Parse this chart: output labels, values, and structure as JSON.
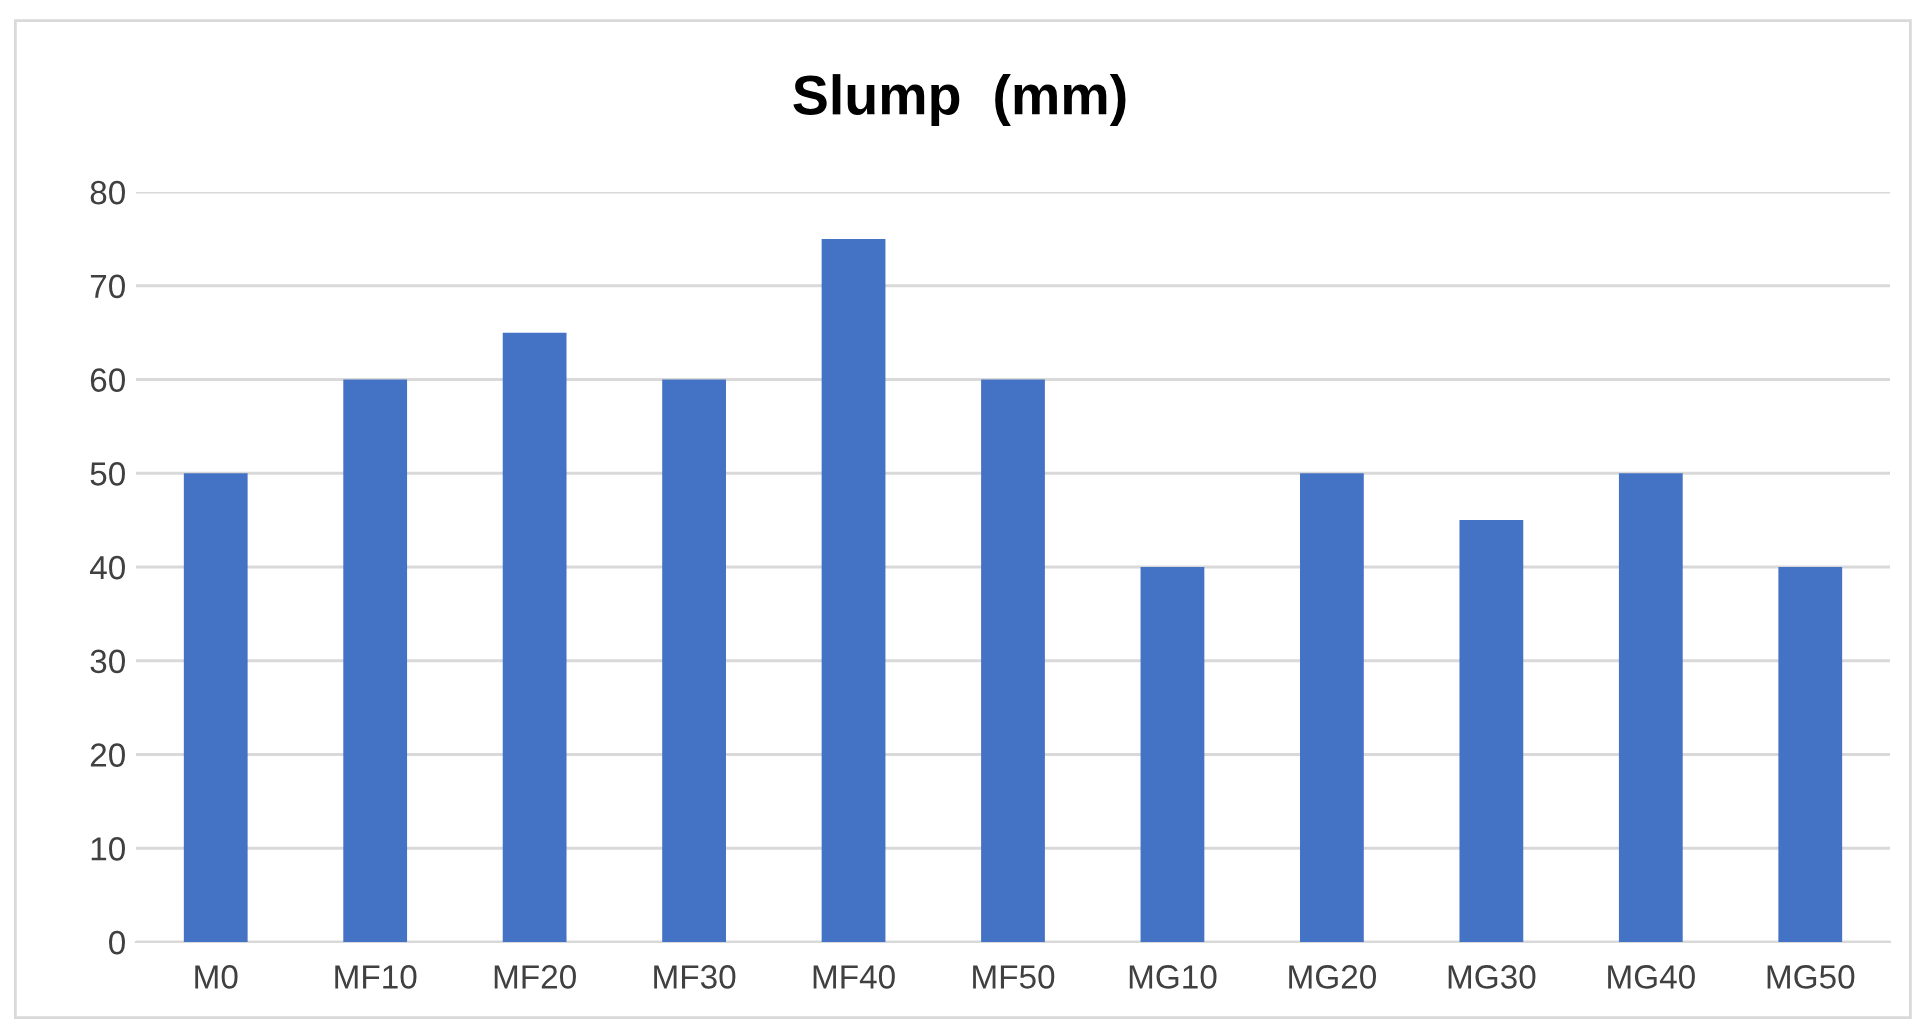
{
  "chart_data": {
    "type": "bar",
    "title": "Slump  (mm)",
    "categories": [
      "M0",
      "MF10",
      "MF20",
      "MF30",
      "MF40",
      "MF50",
      "MG10",
      "MG20",
      "MG30",
      "MG40",
      "MG50"
    ],
    "values": [
      50,
      60,
      65,
      60,
      75,
      60,
      40,
      50,
      45,
      50,
      40
    ],
    "color": "#4472c4",
    "ylim": [
      0,
      80
    ],
    "yticks": [
      0,
      10,
      20,
      30,
      40,
      50,
      60,
      70,
      80
    ],
    "grid": "y"
  }
}
